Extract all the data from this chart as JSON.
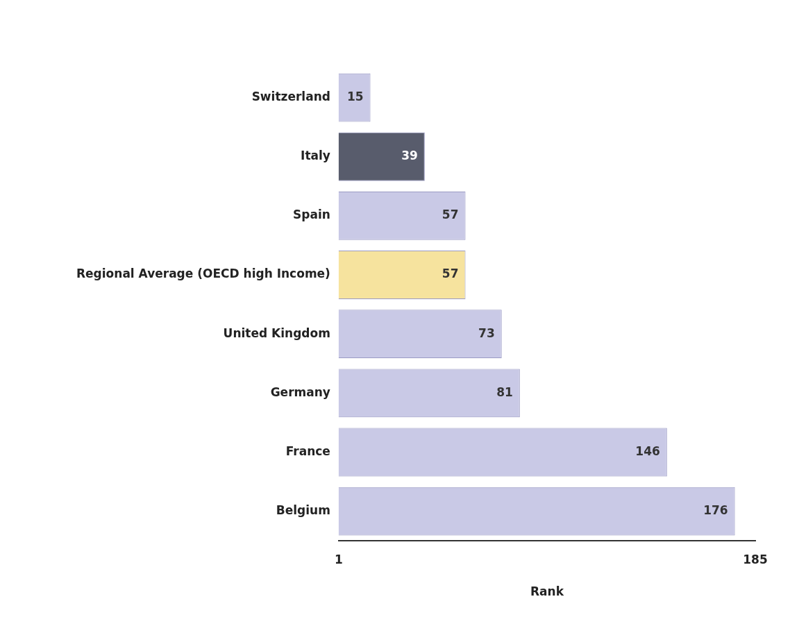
{
  "chart_data": {
    "type": "bar",
    "orientation": "horizontal",
    "xlabel": "Rank",
    "categories": [
      "Switzerland",
      "Italy",
      "Spain",
      "Regional Average (OECD high Income)",
      "United Kingdom",
      "Germany",
      "France",
      "Belgium"
    ],
    "values": [
      15,
      39,
      57,
      57,
      73,
      81,
      146,
      176
    ],
    "colors": [
      "#c9c9e6",
      "#585c6c",
      "#c9c9e6",
      "#f6e39e",
      "#c9c9e6",
      "#c9c9e6",
      "#c9c9e6",
      "#c9c9e6"
    ],
    "xlim": [
      1,
      185
    ],
    "xticks": [
      1,
      185
    ],
    "data_labels": true
  }
}
